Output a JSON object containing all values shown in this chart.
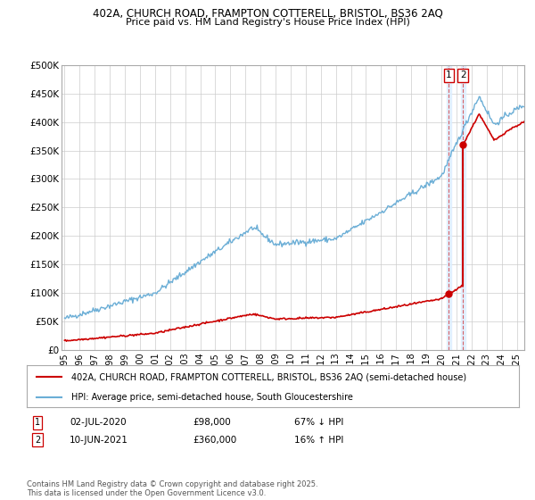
{
  "title_line1": "402A, CHURCH ROAD, FRAMPTON COTTERELL, BRISTOL, BS36 2AQ",
  "title_line2": "Price paid vs. HM Land Registry's House Price Index (HPI)",
  "ylim": [
    0,
    500000
  ],
  "yticks": [
    0,
    50000,
    100000,
    150000,
    200000,
    250000,
    300000,
    350000,
    400000,
    450000,
    500000
  ],
  "ytick_labels": [
    "£0",
    "£50K",
    "£100K",
    "£150K",
    "£200K",
    "£250K",
    "£300K",
    "£350K",
    "£400K",
    "£450K",
    "£500K"
  ],
  "hpi_color": "#6baed6",
  "price_color": "#cc0000",
  "point1_date": "02-JUL-2020",
  "point1_price": 98000,
  "point1_pct": "67% ↓ HPI",
  "point1_year": 2020.5,
  "point2_date": "10-JUN-2021",
  "point2_price": 360000,
  "point2_pct": "16% ↑ HPI",
  "point2_year": 2021.44,
  "legend_label1": "402A, CHURCH ROAD, FRAMPTON COTTERELL, BRISTOL, BS36 2AQ (semi-detached house)",
  "legend_label2": "HPI: Average price, semi-detached house, South Gloucestershire",
  "footnote": "Contains HM Land Registry data © Crown copyright and database right 2025.\nThis data is licensed under the Open Government Licence v3.0.",
  "background_color": "#ffffff",
  "grid_color": "#cccccc",
  "band_color": "#ddeeff"
}
